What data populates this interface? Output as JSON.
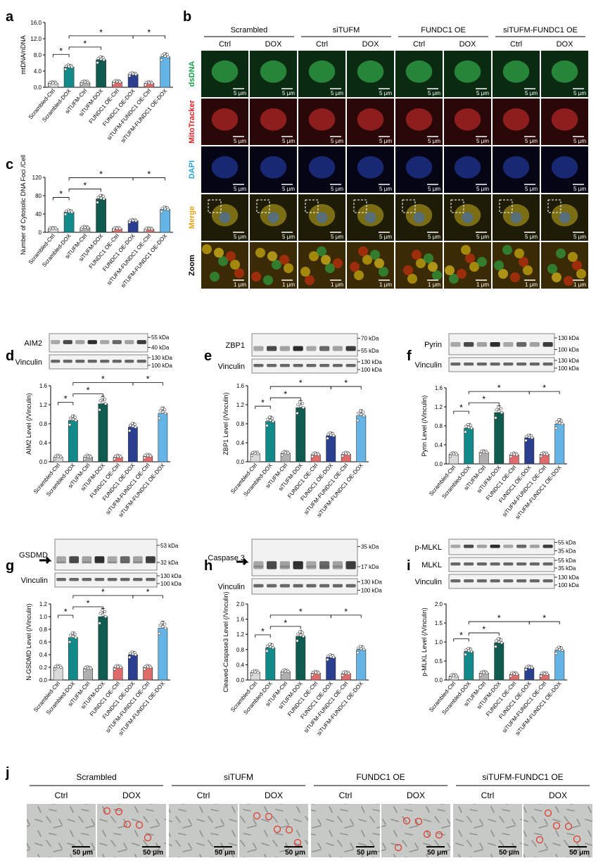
{
  "panel_labels": [
    "a",
    "b",
    "c",
    "d",
    "e",
    "f",
    "g",
    "h",
    "i",
    "j"
  ],
  "treatment_groups": [
    "Scrambled",
    "siTUFM",
    "FUNDC1 OE",
    "siTUFM-FUNDC1 OE"
  ],
  "conditions": [
    "Ctrl",
    "DOX"
  ],
  "bar_categories": [
    "Scrambled-Ctrl",
    "Scrambled-DOX",
    "siTUFM-Ctrl",
    "siTUFM-DOX",
    "FUNDC1 OE-Ctrl",
    "FUNDC1 OE-DOX",
    "siTUFM-FUNDC1 OE-Ctrl",
    "siTUFM-FUNDC1 OE-DOX"
  ],
  "bar_colors": [
    "#d9d9d9",
    "#138a8a",
    "#b0b0b0",
    "#0f5b4f",
    "#e06b6b",
    "#2a3f8f",
    "#e06b6b",
    "#64b5e6"
  ],
  "significance_marker": "*",
  "microscopy_rows": [
    {
      "label": "dsDNA",
      "color": "#1aa34a"
    },
    {
      "label": "MitoTracker",
      "color": "#e02020"
    },
    {
      "label": "DAPI",
      "color": "#29a3d9"
    },
    {
      "label": "Merge",
      "color": "#e8a317"
    },
    {
      "label": "Zoom",
      "color": "#000000"
    }
  ],
  "scale_bars": {
    "cell": "5 μm",
    "zoom": "1 μm",
    "brightfield": "50 μm"
  },
  "blots": {
    "d": {
      "target": "AIM2",
      "target_kda": [
        "55 kDa",
        "40 kDa"
      ],
      "loading": "Vinculin",
      "loading_kda": [
        "130 kDa",
        "100 kDa"
      ]
    },
    "e": {
      "target": "ZBP1",
      "target_kda": [
        "70 kDa",
        "55 kDa"
      ],
      "loading": "Vinculin",
      "loading_kda": [
        "130 kDa",
        "100 kDa"
      ]
    },
    "f": {
      "target": "Pyrin",
      "target_kda": [
        "130 kDa",
        "100 kDa"
      ],
      "loading": "Vinculin",
      "loading_kda": [
        "130 kDa",
        "100 kDa"
      ]
    },
    "g": {
      "target": "GSDMD",
      "target_kda": [
        "53 kDa",
        "32 kDa"
      ],
      "loading": "Vinculin",
      "loading_kda": [
        "130 kDa",
        "100 kDa"
      ]
    },
    "h": {
      "target": "Caspase 3",
      "target_kda": [
        "35 kDa",
        "17 kDa"
      ],
      "loading": "Vinculin",
      "loading_kda": [
        "130 kDa",
        "100 kDa"
      ]
    },
    "i": {
      "target": "p-MLKL",
      "target_kda": [
        "55 kDa",
        "35 kDa"
      ],
      "target2": "MLKL",
      "target2_kda": [
        "55 kDa",
        "35 kDa"
      ],
      "loading": "Vinculin",
      "loading_kda": [
        "130 kDa",
        "100 kDa"
      ]
    }
  },
  "chart_data": [
    {
      "panel": "a",
      "type": "bar",
      "ylabel": "mtDNA/nDNA",
      "ylim": [
        0,
        16
      ],
      "yticks": [
        "0.0",
        "4.0",
        "8.0",
        "12.0",
        "16.0"
      ],
      "values": [
        1.0,
        5.0,
        1.2,
        6.8,
        1.3,
        3.2,
        1.0,
        7.5
      ],
      "sig": [
        [
          0,
          1,
          "*"
        ],
        [
          1,
          3,
          "*"
        ],
        [
          1,
          5,
          "*"
        ],
        [
          5,
          7,
          "*"
        ]
      ]
    },
    {
      "panel": "c",
      "type": "bar",
      "ylabel": "Number of Cytosolic DNA Foci /Cell",
      "ylim": [
        0,
        120
      ],
      "yticks": [
        "0",
        "40",
        "80",
        "120"
      ],
      "values": [
        8,
        44,
        10,
        73,
        8,
        25,
        7,
        50
      ],
      "sig": [
        [
          0,
          1,
          "*"
        ],
        [
          1,
          3,
          "*"
        ],
        [
          1,
          5,
          "*"
        ],
        [
          5,
          7,
          "*"
        ]
      ]
    },
    {
      "panel": "d",
      "type": "bar",
      "ylabel": "AIM2 Level (/Vinculin)",
      "ylim": [
        0,
        1.6
      ],
      "yticks": [
        "0.0",
        "0.4",
        "0.8",
        "1.2",
        "1.6"
      ],
      "values": [
        0.1,
        0.87,
        0.1,
        1.22,
        0.1,
        0.73,
        0.12,
        1.02
      ],
      "sig": [
        [
          0,
          1,
          "*"
        ],
        [
          1,
          3,
          "*"
        ],
        [
          1,
          5,
          "*"
        ],
        [
          5,
          7,
          "*"
        ]
      ]
    },
    {
      "panel": "e",
      "type": "bar",
      "ylabel": "ZBP1 Level (/Vinculin)",
      "ylim": [
        0,
        1.6
      ],
      "yticks": [
        "0.0",
        "0.4",
        "0.8",
        "1.2",
        "1.6"
      ],
      "values": [
        0.17,
        0.85,
        0.18,
        1.14,
        0.15,
        0.55,
        0.16,
        0.97
      ],
      "sig": [
        [
          0,
          1,
          "*"
        ],
        [
          1,
          3,
          "*"
        ],
        [
          1,
          5,
          "*"
        ],
        [
          5,
          7,
          "*"
        ]
      ]
    },
    {
      "panel": "f",
      "type": "bar",
      "ylabel": "Pyrin Level (/Vinculin)",
      "ylim": [
        0,
        1.6
      ],
      "yticks": [
        "0.0",
        "0.4",
        "0.8",
        "1.2",
        "1.6"
      ],
      "values": [
        0.2,
        0.75,
        0.24,
        1.08,
        0.19,
        0.55,
        0.2,
        0.84
      ],
      "sig": [
        [
          0,
          1,
          "*"
        ],
        [
          1,
          3,
          "*"
        ],
        [
          1,
          5,
          "*"
        ],
        [
          5,
          7,
          "*"
        ]
      ]
    },
    {
      "panel": "g",
      "type": "bar",
      "ylabel": "N-GSDMD Level (/Vinculin)",
      "ylim": [
        0,
        1.2
      ],
      "yticks": [
        "0.0",
        "0.2",
        "0.4",
        "0.6",
        "0.8",
        "1.0",
        "1.2"
      ],
      "values": [
        0.2,
        0.67,
        0.18,
        1.0,
        0.2,
        0.4,
        0.2,
        0.82
      ],
      "sig": [
        [
          0,
          1,
          "*"
        ],
        [
          1,
          3,
          "*"
        ],
        [
          1,
          5,
          "*"
        ],
        [
          5,
          7,
          "*"
        ]
      ]
    },
    {
      "panel": "h",
      "type": "bar",
      "ylabel": "Cleaved-Caspase3 Level (/Vinculin)",
      "ylim": [
        0,
        2.0
      ],
      "yticks": [
        "0.0",
        "0.4",
        "0.8",
        "1.2",
        "1.6",
        "2.0"
      ],
      "values": [
        0.2,
        0.85,
        0.22,
        1.15,
        0.18,
        0.6,
        0.17,
        0.8
      ],
      "sig": [
        [
          0,
          1,
          "*"
        ],
        [
          1,
          3,
          "*"
        ],
        [
          1,
          5,
          "*"
        ],
        [
          5,
          7,
          "*"
        ]
      ]
    },
    {
      "panel": "i",
      "type": "bar",
      "ylabel": "p-MLKL Level (/Vinculin)",
      "ylim": [
        0,
        2.0
      ],
      "yticks": [
        "0.0",
        "0.5",
        "1.0",
        "1.5",
        "2.0"
      ],
      "values": [
        0.1,
        0.75,
        0.18,
        0.98,
        0.15,
        0.32,
        0.15,
        0.78
      ],
      "sig": [
        [
          0,
          1,
          "*"
        ],
        [
          1,
          3,
          "*"
        ],
        [
          1,
          5,
          "*"
        ],
        [
          5,
          7,
          "*"
        ]
      ]
    }
  ]
}
